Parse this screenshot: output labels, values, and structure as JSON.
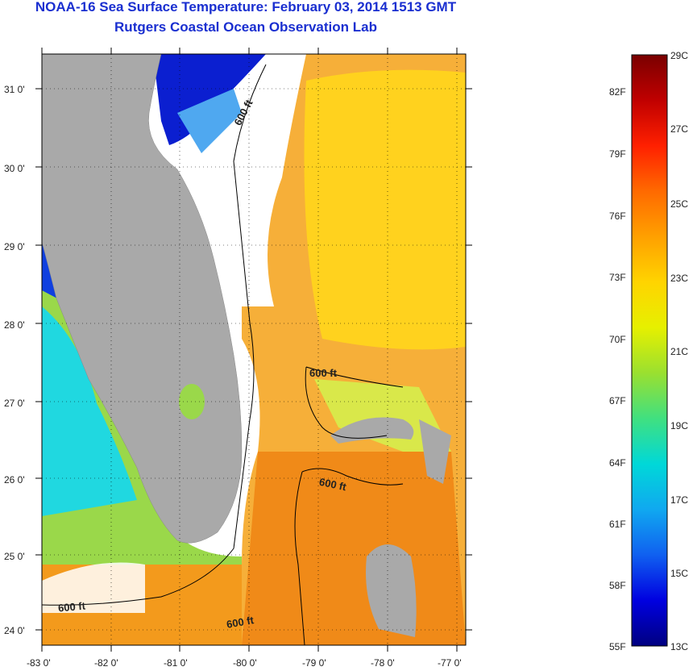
{
  "title": {
    "line1": "NOAA-16 Sea Surface Temperature:  February 03, 2014 1513 GMT",
    "line2": "Rutgers Coastal Ocean Observation Lab"
  },
  "map": {
    "lon_labels": [
      "-83 0'",
      "-82 0'",
      "-81 0'",
      "-80 0'",
      "-79 0'",
      "-78 0'",
      "-77 0'"
    ],
    "lat_labels": [
      "31 0'",
      "30 0'",
      "29 0'",
      "28 0'",
      "27 0'",
      "26 0'",
      "25 0'",
      "24 0'"
    ],
    "contour_labels": [
      "600 ft",
      "600 ft",
      "600 ft",
      "600 ft",
      "600 ft"
    ],
    "colors": {
      "land": "#a9a9a9",
      "cloud": "#ffffff",
      "contour": "#000000"
    }
  },
  "colorbar": {
    "fahrenheit": [
      "82F",
      "79F",
      "76F",
      "73F",
      "70F",
      "67F",
      "64F",
      "61F",
      "58F",
      "55F"
    ],
    "celsius": [
      "29C",
      "27C",
      "25C",
      "23C",
      "21C",
      "19C",
      "17C",
      "15C",
      "13C"
    ],
    "colors": [
      "#7a0000",
      "#c00000",
      "#ff2000",
      "#ff6a00",
      "#ffa000",
      "#ffd400",
      "#e6f000",
      "#9ae030",
      "#40e080",
      "#00d8d8",
      "#10a8f0",
      "#1060f0",
      "#0000e0",
      "#000080"
    ]
  }
}
